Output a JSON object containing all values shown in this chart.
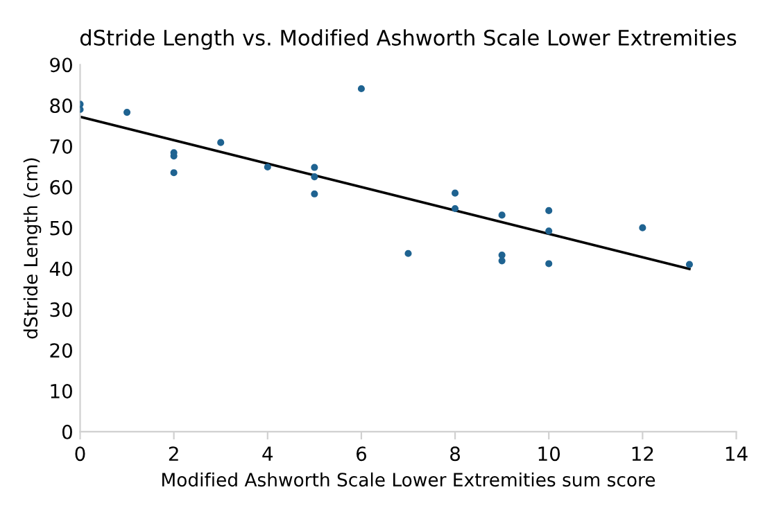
{
  "chart_data": {
    "type": "scatter",
    "title": "dStride Length vs. Modified Ashworth Scale Lower Extremities",
    "xlabel": "Modified Ashworth Scale Lower Extremities sum score",
    "ylabel": "dStride Length (cm)",
    "series": [
      {
        "marker": "circle",
        "color": "#1f6391",
        "x": [
          0,
          0,
          1,
          2,
          2,
          2,
          3,
          4,
          5,
          5,
          5,
          6,
          7,
          8,
          8,
          9,
          9,
          9,
          10,
          10,
          10,
          12,
          13
        ],
        "values": [
          80.3,
          79,
          78.3,
          68.4,
          67.6,
          63.5,
          70.9,
          64.9,
          64.8,
          62.5,
          58.3,
          84.1,
          43.7,
          58.5,
          54.7,
          53.1,
          43.3,
          41.9,
          54.2,
          49.2,
          41.2,
          50,
          41
        ]
      },
      {
        "type": "line",
        "color": "#000000",
        "x": [
          0,
          13
        ],
        "values": [
          77.2,
          39.9
        ]
      }
    ],
    "xlim": [
      0,
      14
    ],
    "xticks": [
      0,
      2,
      4,
      6,
      8,
      10,
      12,
      14
    ],
    "ylim": [
      0,
      90
    ],
    "yticks": [
      0,
      10,
      20,
      30,
      40,
      50,
      60,
      70,
      80,
      90
    ],
    "grid": false
  }
}
